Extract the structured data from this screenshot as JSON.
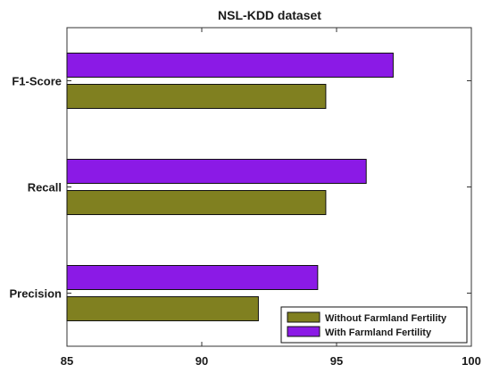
{
  "chart_data": {
    "type": "bar",
    "orientation": "horizontal",
    "title": "NSL-KDD dataset",
    "xlabel": "",
    "ylabel": "",
    "xlim": [
      85,
      100
    ],
    "x_ticks": [
      85,
      90,
      95,
      100
    ],
    "categories": [
      "F1-Score",
      "Recall",
      "Precision"
    ],
    "series": [
      {
        "name": "Without Farmland Fertility",
        "color": "#808020",
        "values": [
          94.6,
          94.6,
          92.1
        ]
      },
      {
        "name": "With Farmland Fertility",
        "color": "#8b1ae6",
        "values": [
          97.1,
          96.1,
          94.3
        ]
      }
    ],
    "legend_position": "bottom-right",
    "grid": false
  }
}
